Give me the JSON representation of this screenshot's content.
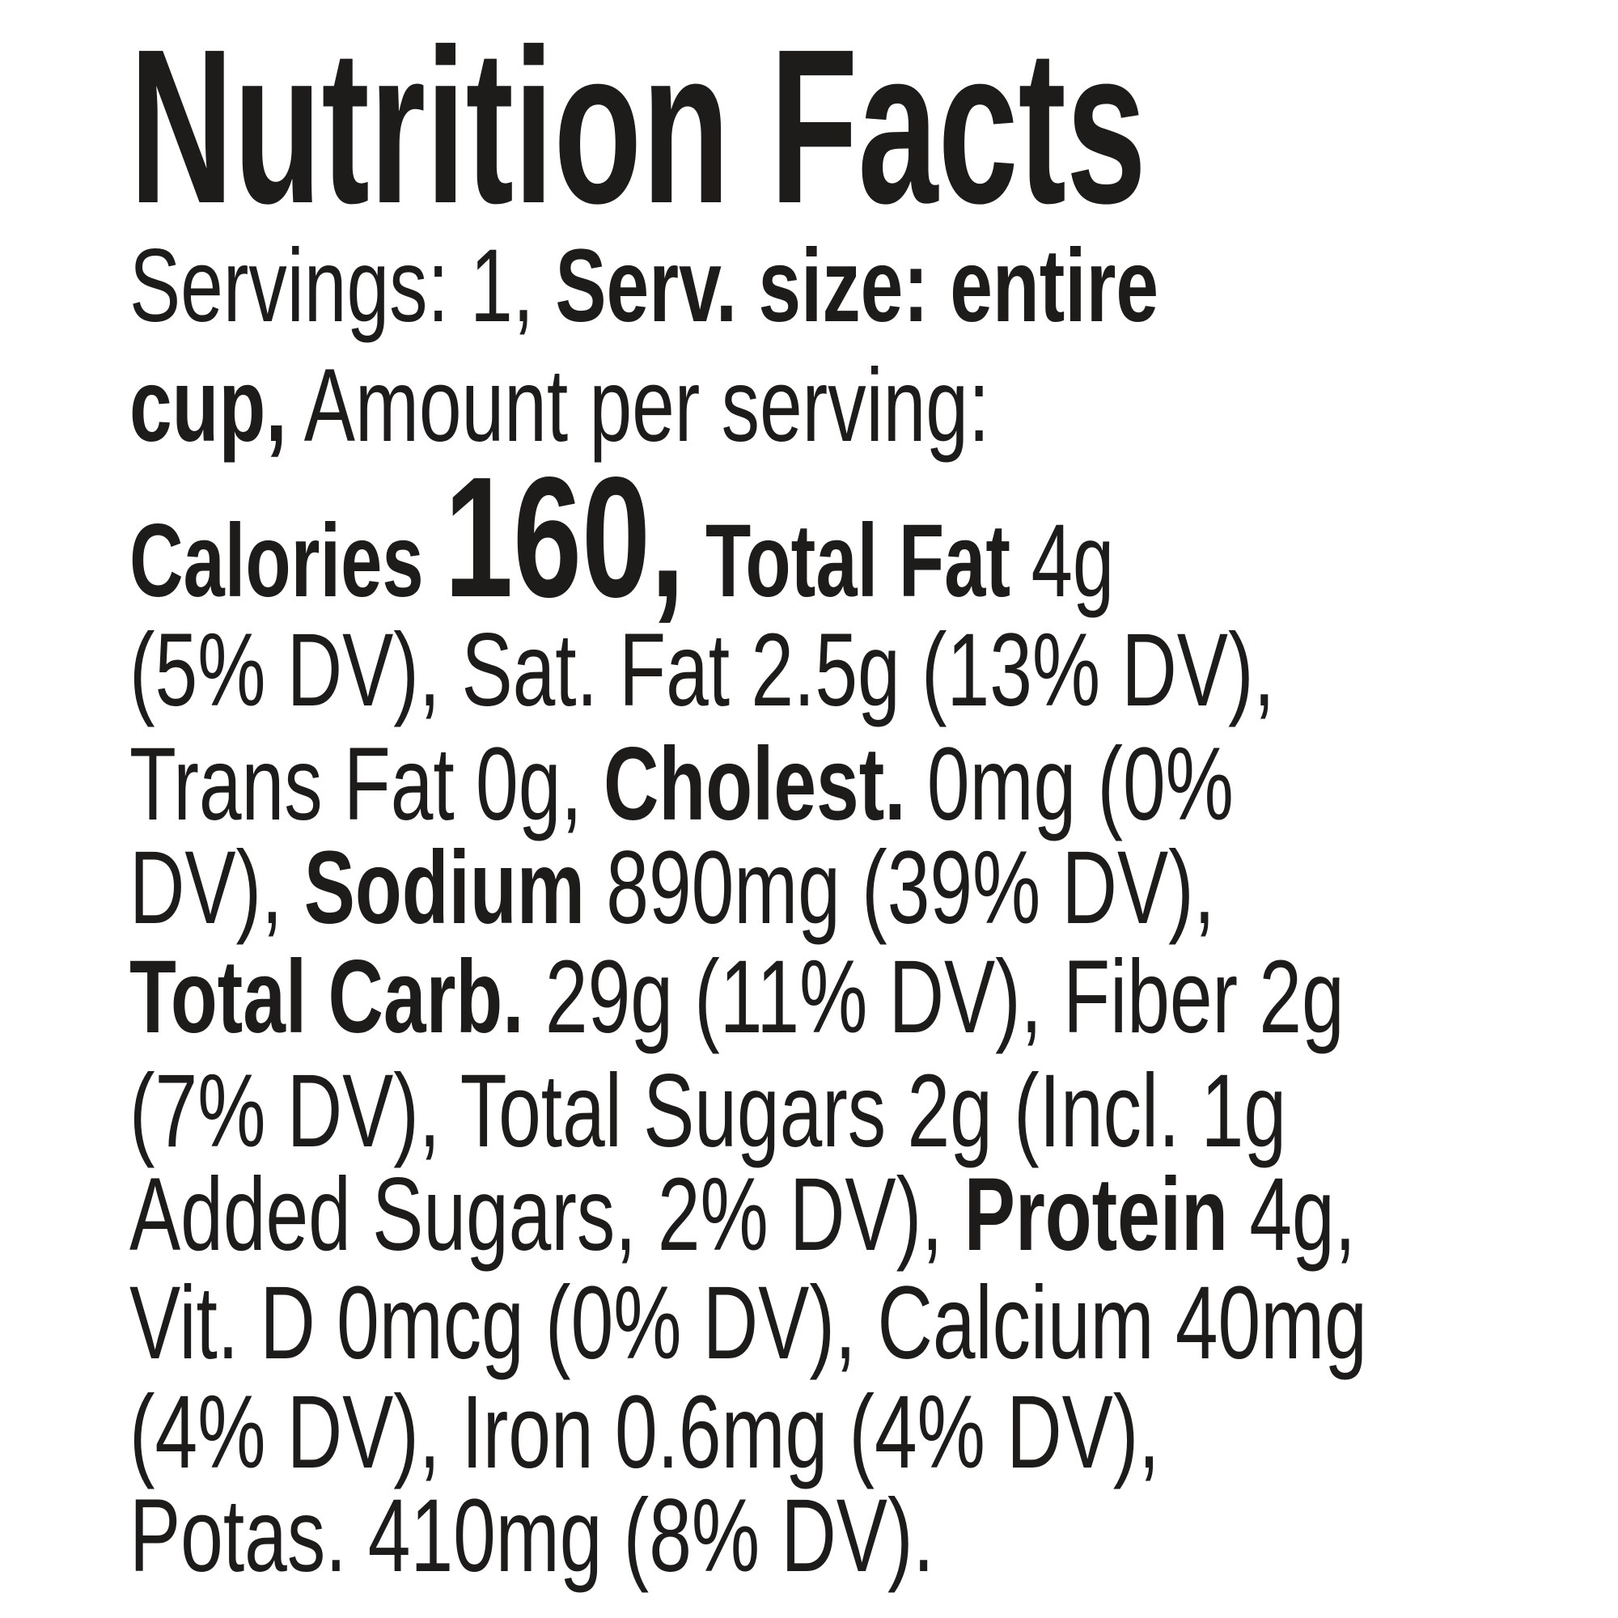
{
  "header": {
    "title": "Nutrition Facts"
  },
  "body": {
    "lines": [
      [
        "Servings: 1, ",
        "Serv. size: entire"
      ],
      [
        "cup,",
        " Amount per serving:"
      ],
      [
        "Calories ",
        "160,",
        " Total Fat",
        " 4g"
      ],
      [
        "(5% DV), Sat. Fat 2.5g (13% DV),"
      ],
      [
        "Trans Fat 0g, ",
        "Cholest.",
        " 0mg (0%"
      ],
      [
        "DV), ",
        "Sodium",
        " 890mg (39% DV),"
      ],
      [
        "Total Carb.",
        " 29g (11% DV), Fiber 2g"
      ],
      [
        "(7% DV), Total Sugars 2g (Incl. 1g"
      ],
      [
        "Added Sugars, 2% DV), ",
        "Protein",
        " 4g,"
      ],
      [
        "Vit. D 0mcg (0% DV), Calcium 40mg"
      ],
      [
        "(4% DV), Iron 0.6mg (4% DV),"
      ],
      [
        "Potas. 410mg (8% DV)."
      ]
    ]
  }
}
